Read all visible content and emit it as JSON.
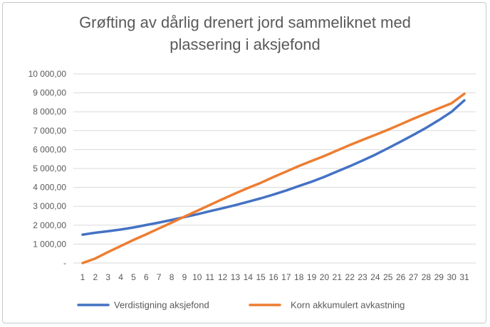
{
  "chart_data": {
    "type": "line",
    "title_lines": [
      "Grøfting av dårlig drenert jord sammeliknet med",
      "plassering i aksjefond"
    ],
    "x": [
      1,
      2,
      3,
      4,
      5,
      6,
      7,
      8,
      9,
      10,
      11,
      12,
      13,
      14,
      15,
      16,
      17,
      18,
      19,
      20,
      21,
      22,
      23,
      24,
      25,
      26,
      27,
      28,
      29,
      30,
      31
    ],
    "x_tick_labels": [
      "1",
      "2",
      "3",
      "4",
      "5",
      "6",
      "7",
      "8",
      "9",
      "10",
      "11",
      "12",
      "13",
      "14",
      "15",
      "16",
      "17",
      "18",
      "19",
      "20",
      "21",
      "22",
      "23",
      "24",
      "25",
      "26",
      "27",
      "28",
      "29",
      "30",
      "31"
    ],
    "ylim": [
      0,
      10000
    ],
    "y_tick_values": [
      0,
      1000,
      2000,
      3000,
      4000,
      5000,
      6000,
      7000,
      8000,
      9000,
      10000
    ],
    "y_tick_labels": [
      "-",
      "1 000,00",
      "2 000,00",
      "3 000,00",
      "4 000,00",
      "5 000,00",
      "6 000,00",
      "7 000,00",
      "8 000,00",
      "9 000,00",
      "10 000,00"
    ],
    "grid": true,
    "legend_position": "bottom",
    "series": [
      {
        "name": "Verdistigning aksjefond",
        "color": "#4472C4",
        "values": [
          1500,
          1600,
          1680,
          1770,
          1880,
          2010,
          2140,
          2280,
          2430,
          2580,
          2740,
          2900,
          3060,
          3240,
          3420,
          3620,
          3840,
          4070,
          4300,
          4560,
          4840,
          5120,
          5420,
          5730,
          6070,
          6420,
          6780,
          7150,
          7560,
          8000,
          8600
        ]
      },
      {
        "name": "Korn akkumulert avkastning",
        "color": "#ED7D31",
        "values": [
          0,
          240,
          580,
          900,
          1220,
          1520,
          1830,
          2140,
          2450,
          2760,
          3070,
          3380,
          3680,
          3970,
          4240,
          4550,
          4840,
          5130,
          5400,
          5660,
          5950,
          6240,
          6510,
          6780,
          7050,
          7340,
          7630,
          7910,
          8180,
          8450,
          8950
        ]
      }
    ]
  }
}
